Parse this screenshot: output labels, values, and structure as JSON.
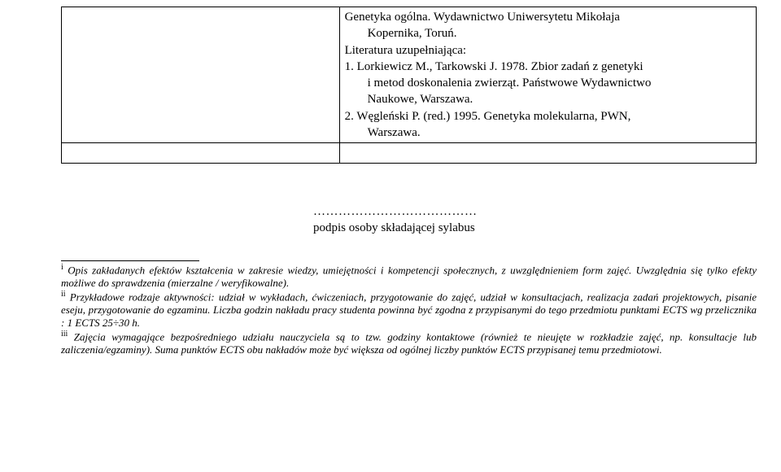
{
  "table": {
    "row1": {
      "lit1_line1": "Genetyka ogólna. Wydawnictwo Uniwersytetu Mikołaja",
      "lit1_line2": "Kopernika, Toruń.",
      "supp_heading": "Literatura uzupełniająca:",
      "lit2_line1": "1.   Lorkiewicz M., Tarkowski J. 1978. Zbior zadań z genetyki",
      "lit2_line2": "i metod doskonalenia zwierząt. Państwowe Wydawnictwo",
      "lit2_line3": "Naukowe, Warszawa.",
      "lit3_line1": "2.   Węgleński P. (red.) 1995. Genetyka molekularna, PWN,",
      "lit3_line2": "Warszawa."
    }
  },
  "signature": {
    "dots": "…………………………………",
    "label": "podpis osoby składającej sylabus"
  },
  "footnotes": {
    "fn1": " Opis zakładanych efektów kształcenia w zakresie wiedzy, umiejętności i kompetencji społecznych, z uwzględnieniem form zajęć. Uwzględnia się tylko efekty możliwe do sprawdzenia (mierzalne / weryfikowalne).",
    "fn2": " Przykładowe rodzaje aktywności: udział w wykładach, ćwiczeniach, przygotowanie do zajęć, udział w konsultacjach, realizacja zadań projektowych, pisanie eseju, przygotowanie do egzaminu. Liczba godzin nakładu pracy studenta powinna być zgodna z przypisanymi do tego przedmiotu punktami ECTS wg przelicznika : 1 ECTS 25÷30 h.",
    "fn3": " Zajęcia wymagające bezpośredniego udziału nauczyciela są to tzw. godziny kontaktowe (również te nieujęte w rozkładzie zajęć, np. konsultacje lub zaliczenia/egzaminy). Suma punktów ECTS obu nakładów może być większa od ogólnej liczby punktów ECTS przypisanej temu przedmiotowi.",
    "sup1": "i",
    "sup2": "ii",
    "sup3": "iii"
  }
}
